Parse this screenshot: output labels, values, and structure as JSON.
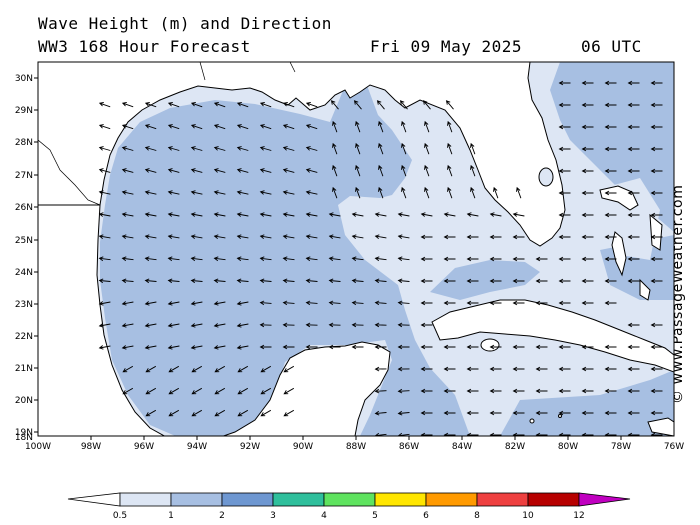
{
  "header": {
    "title": "Wave Height (m) and Direction",
    "subtitle": "WW3 168 Hour Forecast",
    "date": "Fri 09 May 2025",
    "time": "06 UTC"
  },
  "watermark": "© www.PassageWeather.com",
  "axes": {
    "lat_labels": [
      "30N",
      "29N",
      "28N",
      "27N",
      "26N",
      "25N",
      "24N",
      "23N",
      "22N",
      "21N",
      "20N",
      "19N",
      "18N"
    ],
    "lon_labels": [
      "100W",
      "98W",
      "96W",
      "94W",
      "92W",
      "90W",
      "88W",
      "86W",
      "84W",
      "82W",
      "80W",
      "78W",
      "76W"
    ]
  },
  "legend": {
    "labels": [
      "0.5",
      "1",
      "2",
      "3",
      "4",
      "5",
      "6",
      "8",
      "10",
      "12"
    ],
    "colors": [
      "#dde6f4",
      "#a7bfe2",
      "#6e97d1",
      "#2fbf9c",
      "#5fe35f",
      "#ffe600",
      "#ff9a00",
      "#ee4040",
      "#b70000",
      "#c000c0"
    ]
  },
  "colors": {
    "light_band": "#dde6f4",
    "medium_band": "#a7bfe2",
    "coastline": "#000000",
    "border": "#000000"
  }
}
